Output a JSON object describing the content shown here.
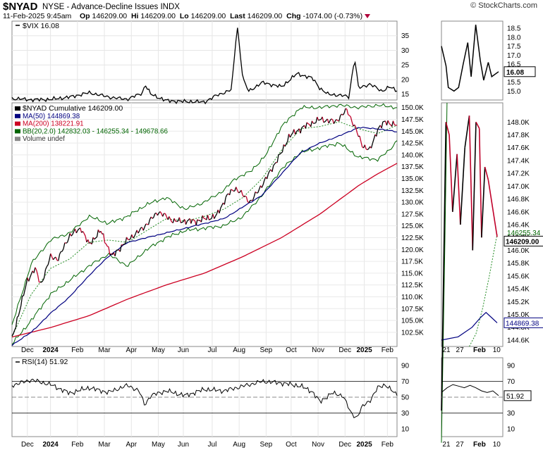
{
  "header": {
    "symbol": "$NYAD",
    "subtitle": "NYSE - Advance-Decline Issues  INDX",
    "datetime": "11-Feb-2025 9:45am",
    "open_label": "Op",
    "open": "146209.00",
    "high_label": "Hi",
    "high": "146209.00",
    "low_label": "Lo",
    "low": "146209.00",
    "last_label": "Last",
    "last": "146209.00",
    "chg_label": "Chg",
    "chg": "-1074.00 (-0.73%)",
    "brand": "© StockCharts.com"
  },
  "colors": {
    "price": "#000000",
    "down": "#c0002a",
    "ma50": "#000080",
    "ma200": "#cc0022",
    "bb": "#006400",
    "bb_mid": "#228b22",
    "rsi": "#000000"
  },
  "chart_data": [
    {
      "type": "line",
      "panel": "vix",
      "legend": "$VIX 16.08",
      "last_label": "16.08",
      "ylim": [
        13,
        40
      ],
      "ticks": [
        15,
        20,
        25,
        30,
        35
      ],
      "zoom_ylim": [
        14.5,
        18.9
      ],
      "zoom_ticks": [
        15.0,
        15.5,
        16.0,
        16.5,
        17.0,
        17.5,
        18.0,
        18.5
      ],
      "x_labels": [
        "Dec",
        "2024",
        "Feb",
        "Mar",
        "Apr",
        "May",
        "Jun",
        "Jul",
        "Aug",
        "Sep",
        "Oct",
        "Nov",
        "Dec",
        "2025",
        "Feb"
      ],
      "anchors": [
        [
          0,
          13.5
        ],
        [
          0.05,
          13.1
        ],
        [
          0.1,
          13.2
        ],
        [
          0.15,
          14.0
        ],
        [
          0.2,
          15.5
        ],
        [
          0.26,
          13.8
        ],
        [
          0.3,
          13.3
        ],
        [
          0.34,
          15.5
        ],
        [
          0.345,
          18.5
        ],
        [
          0.36,
          15.0
        ],
        [
          0.4,
          12.8
        ],
        [
          0.44,
          12.5
        ],
        [
          0.5,
          12.3
        ],
        [
          0.53,
          14.5
        ],
        [
          0.57,
          16.5
        ],
        [
          0.585,
          38.6
        ],
        [
          0.6,
          20.0
        ],
        [
          0.615,
          16.0
        ],
        [
          0.65,
          19.0
        ],
        [
          0.7,
          17.5
        ],
        [
          0.74,
          22.0
        ],
        [
          0.78,
          20.5
        ],
        [
          0.8,
          17.0
        ],
        [
          0.82,
          15.0
        ],
        [
          0.86,
          14.5
        ],
        [
          0.875,
          14.0
        ],
        [
          0.89,
          27.5
        ],
        [
          0.9,
          17.0
        ],
        [
          0.93,
          18.5
        ],
        [
          0.96,
          16.0
        ],
        [
          0.98,
          17.5
        ],
        [
          1.0,
          16.08
        ]
      ]
    },
    {
      "type": "line",
      "panel": "price",
      "legend_price": "$NYAD Cumulative 146209.00",
      "legend_ma50": "MA(50) 144869.38",
      "legend_ma200": "MA(200) 138221.91",
      "legend_bb": "BB(20,2.0) 142832.03 - 146255.34 - 149678.66",
      "legend_vol": "Volume undef",
      "last_label": "146209.00",
      "ma50_label": "144869.38",
      "bb_label": "146255.34",
      "ylim": [
        99500,
        151000
      ],
      "ticks": [
        102500,
        105000,
        107500,
        110000,
        112500,
        115000,
        117500,
        120000,
        122500,
        125000,
        127500,
        130000,
        132500,
        135000,
        137500,
        140000,
        142500,
        145000,
        147500,
        150000
      ],
      "tick_labels": [
        "102.5K",
        "105.0K",
        "107.5K",
        "110.0K",
        "112.5K",
        "115.0K",
        "117.5K",
        "120.0K",
        "122.5K",
        "125.0K",
        "127.5K",
        "130.0K",
        "132.5K",
        "135.0K",
        "137.5K",
        "140.0K",
        "142.5K",
        "145.0K",
        "147.5K",
        "150.0K"
      ],
      "zoom_ylim": [
        144500,
        148300
      ],
      "zoom_ticks": [
        144600,
        144800,
        145000,
        145200,
        145400,
        145600,
        145800,
        146000,
        146200,
        146400,
        146600,
        146800,
        147000,
        147200,
        147400,
        147600,
        147800,
        148000
      ],
      "zoom_tick_labels": [
        "144.6K",
        "144.8K",
        "145.0K",
        "145.2K",
        "145.4K",
        "145.6K",
        "145.8K",
        "146.0K",
        "146.2K",
        "146.4K",
        "146.6K",
        "146.8K",
        "147.0K",
        "147.2K",
        "147.4K",
        "147.6K",
        "147.8K",
        "148.0K"
      ],
      "price_anchors": [
        [
          0,
          101000
        ],
        [
          0.04,
          113500
        ],
        [
          0.06,
          116000
        ],
        [
          0.075,
          112500
        ],
        [
          0.1,
          118500
        ],
        [
          0.12,
          118000
        ],
        [
          0.15,
          123000
        ],
        [
          0.18,
          124500
        ],
        [
          0.2,
          121000
        ],
        [
          0.23,
          124000
        ],
        [
          0.26,
          118500
        ],
        [
          0.3,
          122000
        ],
        [
          0.34,
          124500
        ],
        [
          0.38,
          128000
        ],
        [
          0.42,
          126000
        ],
        [
          0.48,
          126000
        ],
        [
          0.5,
          126500
        ],
        [
          0.53,
          127000
        ],
        [
          0.56,
          131500
        ],
        [
          0.58,
          133000
        ],
        [
          0.62,
          130000
        ],
        [
          0.66,
          135000
        ],
        [
          0.7,
          140500
        ],
        [
          0.72,
          144000
        ],
        [
          0.76,
          146000
        ],
        [
          0.8,
          147500
        ],
        [
          0.84,
          147000
        ],
        [
          0.87,
          149500
        ],
        [
          0.89,
          146000
        ],
        [
          0.91,
          142000
        ],
        [
          0.93,
          141000
        ],
        [
          0.95,
          145500
        ],
        [
          0.97,
          147000
        ],
        [
          1.0,
          146209
        ]
      ],
      "ma50_anchors": [
        [
          0,
          99800
        ],
        [
          0.05,
          102500
        ],
        [
          0.1,
          106500
        ],
        [
          0.15,
          110000
        ],
        [
          0.2,
          114500
        ],
        [
          0.25,
          118500
        ],
        [
          0.3,
          121500
        ],
        [
          0.35,
          122500
        ],
        [
          0.4,
          123500
        ],
        [
          0.45,
          124500
        ],
        [
          0.5,
          125500
        ],
        [
          0.55,
          126500
        ],
        [
          0.6,
          129000
        ],
        [
          0.65,
          131500
        ],
        [
          0.7,
          136000
        ],
        [
          0.75,
          140500
        ],
        [
          0.8,
          142500
        ],
        [
          0.85,
          144000
        ],
        [
          0.9,
          145800
        ],
        [
          0.95,
          145500
        ],
        [
          1.0,
          144869
        ]
      ],
      "ma200_anchors": [
        [
          0,
          101500
        ],
        [
          0.1,
          103500
        ],
        [
          0.2,
          106000
        ],
        [
          0.3,
          109500
        ],
        [
          0.4,
          112500
        ],
        [
          0.5,
          115000
        ],
        [
          0.6,
          118500
        ],
        [
          0.7,
          122500
        ],
        [
          0.8,
          127500
        ],
        [
          0.9,
          133500
        ],
        [
          0.95,
          136000
        ],
        [
          1.0,
          138221
        ]
      ],
      "bb_upper": [
        [
          0,
          104000
        ],
        [
          0.05,
          117000
        ],
        [
          0.1,
          122000
        ],
        [
          0.15,
          123500
        ],
        [
          0.2,
          127000
        ],
        [
          0.25,
          125500
        ],
        [
          0.3,
          127000
        ],
        [
          0.35,
          129500
        ],
        [
          0.4,
          131000
        ],
        [
          0.45,
          128500
        ],
        [
          0.5,
          130000
        ],
        [
          0.55,
          132500
        ],
        [
          0.58,
          135000
        ],
        [
          0.62,
          136500
        ],
        [
          0.66,
          140000
        ],
        [
          0.7,
          146000
        ],
        [
          0.75,
          150000
        ],
        [
          0.8,
          150000
        ],
        [
          0.85,
          150500
        ],
        [
          0.9,
          150000
        ],
        [
          0.95,
          150500
        ],
        [
          1.0,
          150000
        ]
      ],
      "bb_lower": [
        [
          0,
          100000
        ],
        [
          0.05,
          105000
        ],
        [
          0.1,
          110500
        ],
        [
          0.15,
          113500
        ],
        [
          0.2,
          116500
        ],
        [
          0.25,
          119000
        ],
        [
          0.3,
          116500
        ],
        [
          0.35,
          120000
        ],
        [
          0.4,
          122500
        ],
        [
          0.45,
          124000
        ],
        [
          0.5,
          124500
        ],
        [
          0.55,
          125000
        ],
        [
          0.6,
          127000
        ],
        [
          0.65,
          131500
        ],
        [
          0.7,
          137000
        ],
        [
          0.75,
          140500
        ],
        [
          0.8,
          141500
        ],
        [
          0.85,
          142500
        ],
        [
          0.9,
          139500
        ],
        [
          0.95,
          139000
        ],
        [
          0.98,
          141000
        ],
        [
          1.0,
          143000
        ]
      ],
      "bb_mid": [
        [
          0,
          101500
        ],
        [
          0.05,
          110500
        ],
        [
          0.1,
          116000
        ],
        [
          0.15,
          118000
        ],
        [
          0.2,
          121500
        ],
        [
          0.25,
          122000
        ],
        [
          0.3,
          121500
        ],
        [
          0.35,
          124000
        ],
        [
          0.4,
          126500
        ],
        [
          0.45,
          126000
        ],
        [
          0.5,
          127000
        ],
        [
          0.55,
          128500
        ],
        [
          0.6,
          131000
        ],
        [
          0.65,
          135000
        ],
        [
          0.7,
          141000
        ],
        [
          0.75,
          145500
        ],
        [
          0.8,
          146000
        ],
        [
          0.85,
          147000
        ],
        [
          0.9,
          145500
        ],
        [
          0.95,
          144500
        ],
        [
          1.0,
          146255
        ]
      ],
      "zoom_price": [
        [
          0,
          143500
        ],
        [
          0.08,
          148000
        ],
        [
          0.14,
          147800
        ],
        [
          0.2,
          146600
        ],
        [
          0.28,
          147500
        ],
        [
          0.34,
          146400
        ],
        [
          0.42,
          147600
        ],
        [
          0.5,
          148100
        ],
        [
          0.56,
          146000
        ],
        [
          0.62,
          148000
        ],
        [
          0.68,
          147900
        ],
        [
          0.72,
          146200
        ],
        [
          0.78,
          147300
        ],
        [
          0.84,
          147100
        ],
        [
          1.0,
          146209
        ]
      ],
      "zoom_ma50": [
        [
          0,
          144600
        ],
        [
          0.3,
          144650
        ],
        [
          0.55,
          144800
        ],
        [
          0.7,
          144950
        ],
        [
          0.8,
          145030
        ],
        [
          0.9,
          144950
        ],
        [
          1.0,
          144869
        ]
      ],
      "zoom_bb_lower": [
        [
          0,
          143000
        ],
        [
          0.06,
          146000
        ],
        [
          0.1,
          148300
        ]
      ],
      "zoom_bb_mid": [
        [
          0.5,
          144500
        ],
        [
          0.62,
          144700
        ],
        [
          0.74,
          145100
        ],
        [
          0.86,
          145600
        ],
        [
          1.0,
          146255
        ]
      ],
      "x_labels": [
        "Dec",
        "2024",
        "Feb",
        "Mar",
        "Apr",
        "May",
        "Jun",
        "Jul",
        "Aug",
        "Sep",
        "Oct",
        "Nov",
        "Dec",
        "2025",
        "Feb"
      ],
      "zoom_x_labels": [
        "21",
        "27",
        "Feb",
        "10"
      ]
    },
    {
      "type": "line",
      "panel": "rsi",
      "legend": "RSI(14) 51.92",
      "last_label": "51.92",
      "ylim": [
        0,
        100
      ],
      "ticks": [
        10,
        30,
        50,
        70,
        90
      ],
      "anchors": [
        [
          0,
          65
        ],
        [
          0.05,
          72
        ],
        [
          0.1,
          66
        ],
        [
          0.15,
          55
        ],
        [
          0.2,
          62
        ],
        [
          0.25,
          56
        ],
        [
          0.3,
          65
        ],
        [
          0.33,
          58
        ],
        [
          0.345,
          40
        ],
        [
          0.36,
          52
        ],
        [
          0.4,
          58
        ],
        [
          0.45,
          52
        ],
        [
          0.5,
          60
        ],
        [
          0.55,
          58
        ],
        [
          0.6,
          64
        ],
        [
          0.65,
          70
        ],
        [
          0.7,
          68
        ],
        [
          0.75,
          64
        ],
        [
          0.78,
          57
        ],
        [
          0.8,
          44
        ],
        [
          0.83,
          55
        ],
        [
          0.86,
          52
        ],
        [
          0.88,
          30
        ],
        [
          0.895,
          24
        ],
        [
          0.91,
          38
        ],
        [
          0.93,
          46
        ],
        [
          0.95,
          62
        ],
        [
          0.97,
          66
        ],
        [
          1.0,
          51.92
        ]
      ],
      "zoom_anchors": [
        [
          0,
          56
        ],
        [
          0.1,
          62
        ],
        [
          0.2,
          66
        ],
        [
          0.3,
          64
        ],
        [
          0.4,
          62
        ],
        [
          0.5,
          65
        ],
        [
          0.6,
          62
        ],
        [
          0.7,
          58
        ],
        [
          0.8,
          56
        ],
        [
          0.9,
          58
        ],
        [
          1.0,
          51.92
        ]
      ],
      "x_labels": [
        "Dec",
        "2024",
        "Feb",
        "Mar",
        "Apr",
        "May",
        "Jun",
        "Jul",
        "Aug",
        "Sep",
        "Oct",
        "Nov",
        "Dec",
        "2025",
        "Feb"
      ],
      "zoom_x_labels": [
        "21",
        "27",
        "Feb",
        "10"
      ]
    }
  ]
}
